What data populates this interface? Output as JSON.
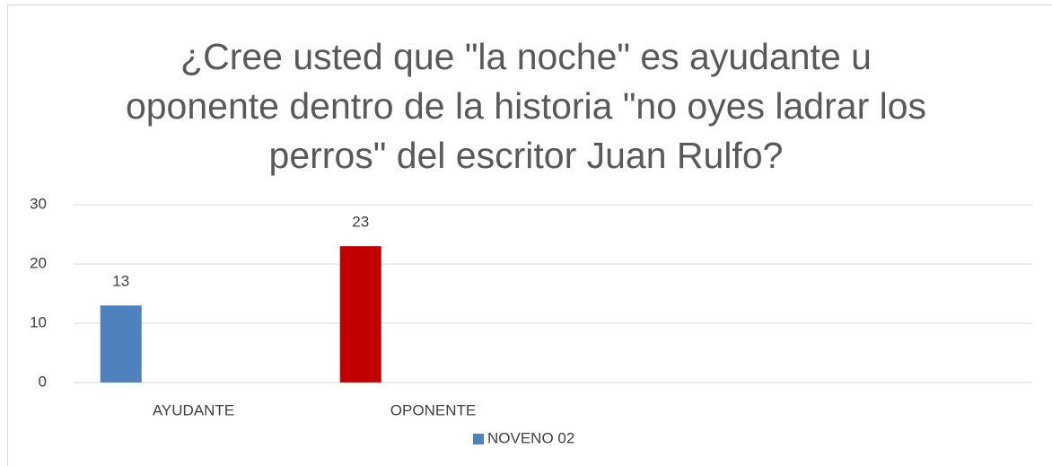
{
  "chart_data": {
    "type": "bar",
    "title": "¿Cree usted que \"la noche\" es ayudante u oponente dentro de la historia \"no oyes ladrar los perros\" del escritor Juan Rulfo?",
    "categories": [
      "AYUDANTE",
      "OPONENTE",
      null,
      null
    ],
    "series": [
      {
        "name": "NOVENO 02",
        "color": "#4f81bd",
        "values": [
          13,
          23,
          null,
          null
        ]
      }
    ],
    "colors": [
      "#4f81bd",
      "#c00000",
      null,
      null
    ],
    "ylim": [
      0,
      30
    ],
    "yticks": [
      0,
      10,
      20,
      30
    ],
    "grid": true,
    "legend": "bottom"
  }
}
